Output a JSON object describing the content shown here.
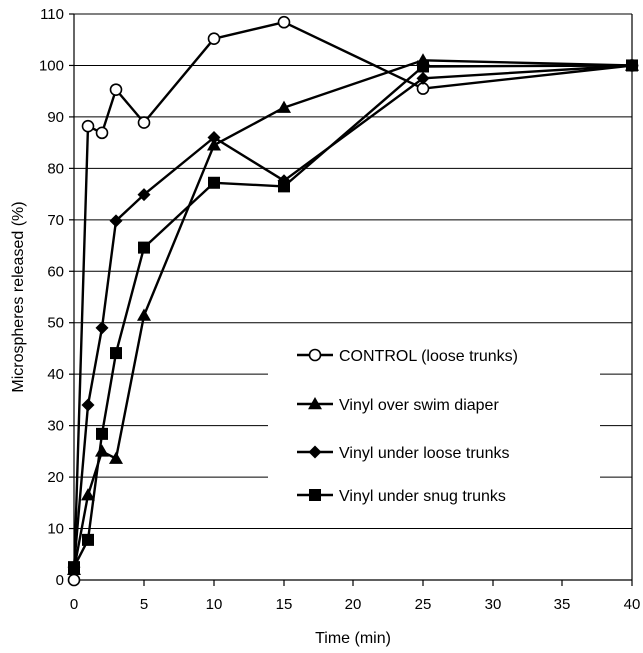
{
  "chart_data": {
    "type": "line",
    "xlabel": "Time (min)",
    "ylabel": "Microspheres released (%)",
    "x_ticks": [
      "0",
      "5",
      "10",
      "15",
      "20",
      "25",
      "30",
      "35",
      "40"
    ],
    "y_ticks": [
      "0",
      "10",
      "20",
      "30",
      "40",
      "50",
      "60",
      "70",
      "80",
      "90",
      "100",
      "110"
    ],
    "xlim": [
      0,
      40
    ],
    "ylim": [
      0,
      110
    ],
    "grid": "horizontal",
    "legend_position": "bottom-right",
    "series": [
      {
        "name": "CONTROL (loose trunks)",
        "marker": "open-circle",
        "x": [
          0,
          1,
          2,
          3,
          5,
          10,
          15,
          25,
          40
        ],
        "y": [
          0,
          88.2,
          86.9,
          95.3,
          88.9,
          105.2,
          108.4,
          95.5,
          100
        ]
      },
      {
        "name": "Vinyl over swim diaper",
        "marker": "triangle",
        "x": [
          0,
          1,
          2,
          3,
          5,
          10,
          15,
          25,
          40
        ],
        "y": [
          2,
          16.5,
          25,
          23.6,
          51.4,
          84.5,
          91.8,
          101,
          100
        ]
      },
      {
        "name": "Vinyl under loose trunks",
        "marker": "diamond",
        "x": [
          0,
          1,
          2,
          3,
          5,
          10,
          15,
          25,
          40
        ],
        "y": [
          2.5,
          34,
          49,
          69.8,
          74.9,
          86,
          77.6,
          97.5,
          100
        ]
      },
      {
        "name": "Vinyl under snug trunks",
        "marker": "square",
        "x": [
          0,
          1,
          2,
          3,
          5,
          10,
          15,
          25,
          40
        ],
        "y": [
          2.5,
          7.8,
          28.4,
          44.1,
          64.6,
          77.2,
          76.5,
          99.8,
          100
        ]
      }
    ]
  }
}
